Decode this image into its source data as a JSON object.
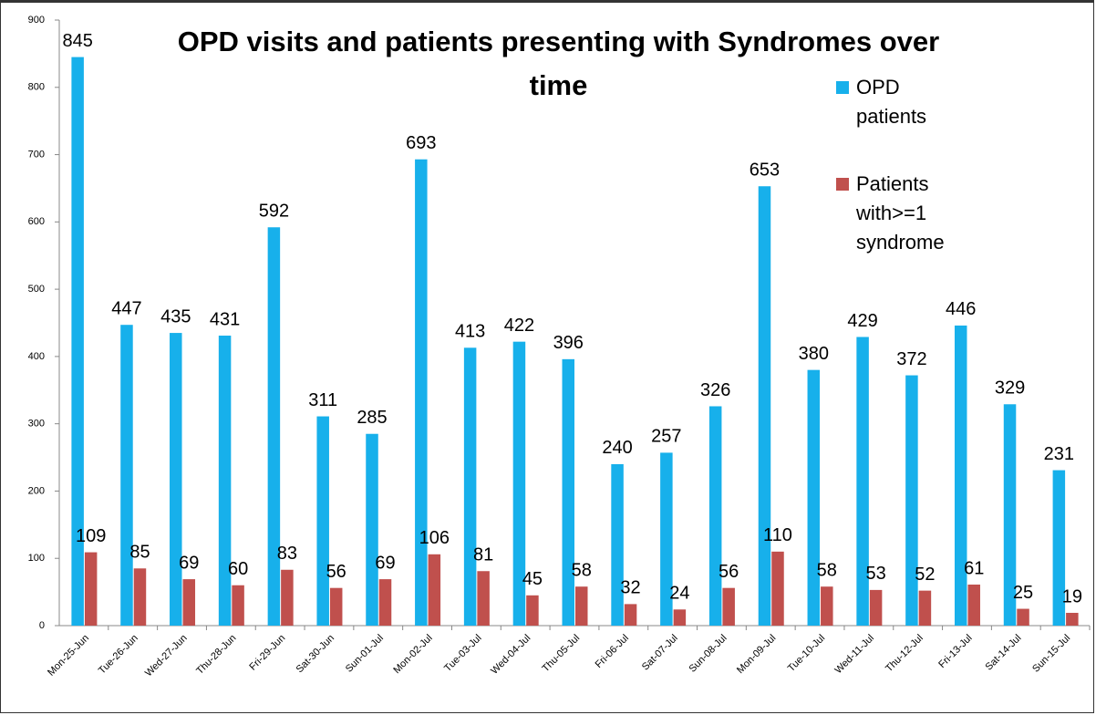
{
  "chart_data": {
    "type": "bar",
    "title": "OPD visits and patients presenting with Syndromes over time",
    "categories": [
      "Mon-25-Jun",
      "Tue-26-Jun",
      "Wed-27-Jun",
      "Thu-28-Jun",
      "Fri-29-Jun",
      "Sat-30-Jun",
      "Sun-01-Jul",
      "Mon-02-Jul",
      "Tue-03-Jul",
      "Wed-04-Jul",
      "Thu-05-Jul",
      "Fri-06-Jul",
      "Sat-07-Jul",
      "Sun-08-Jul",
      "Mon-09-Jul",
      "Tue-10-Jul",
      "Wed-11-Jul",
      "Thu-12-Jul",
      "Fri-13-Jul",
      "Sat-14-Jul",
      "Sun-15-Jul"
    ],
    "series": [
      {
        "name": "OPD patients",
        "color": "#17b0eb",
        "values": [
          845,
          447,
          435,
          431,
          592,
          311,
          285,
          693,
          413,
          422,
          396,
          240,
          257,
          326,
          653,
          380,
          429,
          372,
          446,
          329,
          231
        ]
      },
      {
        "name": "Patients with>=1 syndrome",
        "color": "#c0504d",
        "values": [
          109,
          85,
          69,
          60,
          83,
          56,
          69,
          106,
          81,
          45,
          58,
          32,
          24,
          56,
          110,
          58,
          53,
          52,
          61,
          25,
          19
        ]
      }
    ],
    "ylim": [
      0,
      900
    ],
    "yticks": [
      0,
      100,
      200,
      300,
      400,
      500,
      600,
      700,
      800,
      900
    ],
    "grid": false,
    "legend": "upper right"
  }
}
